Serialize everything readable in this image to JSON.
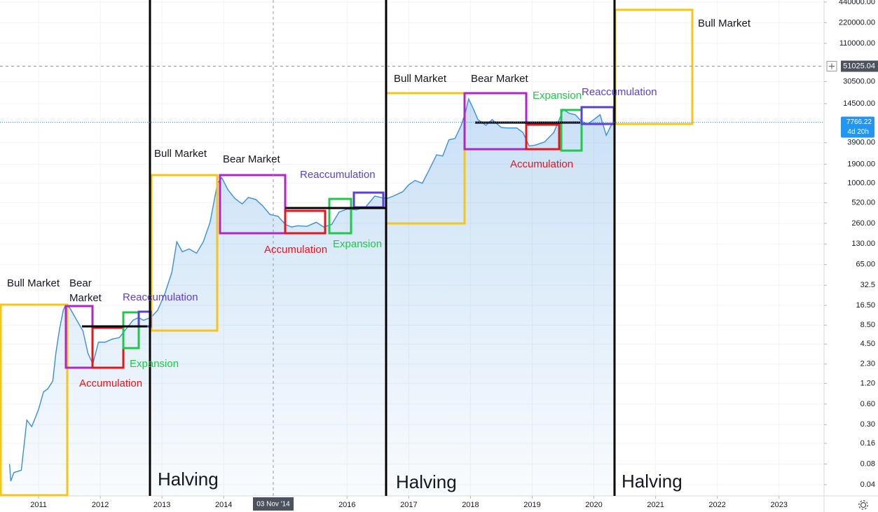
{
  "chart_data": {
    "type": "line",
    "color": "#3a8fdb",
    "log_scale": true,
    "grid": true,
    "x": [
      2010.53,
      2010.55,
      2010.6,
      2010.72,
      2010.81,
      2010.89,
      2011.0,
      2011.08,
      2011.15,
      2011.23,
      2011.28,
      2011.34,
      2011.4,
      2011.44,
      2011.51,
      2011.62,
      2011.72,
      2011.8,
      2011.88,
      2011.97,
      2012.08,
      2012.19,
      2012.31,
      2012.42,
      2012.53,
      2012.62,
      2012.7,
      2012.82,
      2012.93,
      2013.05,
      2013.16,
      2013.24,
      2013.33,
      2013.44,
      2013.56,
      2013.67,
      2013.78,
      2013.84,
      2013.9,
      2013.97,
      2014.07,
      2014.18,
      2014.3,
      2014.4,
      2014.52,
      2014.63,
      2014.75,
      2014.88,
      2015.0,
      2015.1,
      2015.2,
      2015.35,
      2015.5,
      2015.62,
      2015.75,
      2015.87,
      2016.0,
      2016.15,
      2016.3,
      2016.45,
      2016.55,
      2016.65,
      2016.75,
      2016.9,
      2017.0,
      2017.1,
      2017.22,
      2017.35,
      2017.45,
      2017.55,
      2017.65,
      2017.75,
      2017.85,
      2017.92,
      2017.97,
      2018.05,
      2018.12,
      2018.25,
      2018.35,
      2018.5,
      2018.6,
      2018.75,
      2018.85,
      2018.95,
      2019.05,
      2019.2,
      2019.35,
      2019.45,
      2019.5,
      2019.6,
      2019.7,
      2019.8,
      2019.9,
      2020.0,
      2020.1,
      2020.2,
      2020.28,
      2020.35
    ],
    "values": [
      0.08,
      0.045,
      0.06,
      0.065,
      0.35,
      0.28,
      0.5,
      0.9,
      1.0,
      1.3,
      3.3,
      7.5,
      14,
      17,
      15,
      10,
      7,
      3.3,
      2.3,
      4.8,
      4.8,
      5.3,
      5.6,
      7.5,
      10,
      11,
      10,
      11,
      14,
      25,
      50,
      140,
      100,
      110,
      95,
      140,
      270,
      520,
      1000,
      1200,
      800,
      600,
      500,
      620,
      580,
      470,
      350,
      330,
      250,
      230,
      240,
      235,
      270,
      230,
      250,
      380,
      420,
      410,
      450,
      650,
      620,
      600,
      650,
      750,
      950,
      1100,
      1000,
      1700,
      2600,
      2500,
      4300,
      4500,
      7000,
      11000,
      17000,
      12000,
      8500,
      7000,
      8500,
      6500,
      6400,
      6400,
      5500,
      3500,
      3600,
      4000,
      5500,
      9000,
      12000,
      10500,
      10000,
      8000,
      7300,
      8500,
      10000,
      5000,
      7000,
      7766.22
    ],
    "xlim": [
      2010.375,
      2023.73
    ],
    "xticks": [
      2011,
      2012,
      2013,
      2014,
      2016,
      2017,
      2018,
      2019,
      2020,
      2021,
      2022,
      2023
    ],
    "ylim": [
      0.0274,
      472000
    ],
    "yticks": [
      {
        "value": 440000,
        "label": "440000.00"
      },
      {
        "value": 220000,
        "label": "220000.00"
      },
      {
        "value": 110000,
        "label": "110000.00"
      },
      {
        "value": 30500,
        "label": "30500.00"
      },
      {
        "value": 14500,
        "label": "14500.00"
      },
      {
        "value": 3900,
        "label": "3900.00"
      },
      {
        "value": 1900,
        "label": "1900.00"
      },
      {
        "value": 1000,
        "label": "1000.00"
      },
      {
        "value": 520,
        "label": "520.00"
      },
      {
        "value": 260,
        "label": "260.00"
      },
      {
        "value": 130,
        "label": "130.00"
      },
      {
        "value": 65,
        "label": "65.00"
      },
      32.5,
      {
        "value": 16.5,
        "label": "16.50"
      },
      {
        "value": 8.5,
        "label": "8.50"
      },
      {
        "value": 4.5,
        "label": "4.50"
      },
      {
        "value": 2.3,
        "label": "2.30"
      },
      {
        "value": 1.2,
        "label": "1.20"
      },
      {
        "value": 0.6,
        "label": "0.60"
      },
      {
        "value": 0.3,
        "label": "0.30"
      },
      0.16,
      0.08,
      0.04
    ],
    "crosshair": {
      "x_label": "03 Nov '14",
      "y_value": 51025.04
    },
    "last_price": 7766.22,
    "countdown": "4d 20h",
    "annotations": [
      {
        "text": "Bull Market",
        "color": "#131722"
      },
      {
        "text": "Bear Market",
        "color": "#131722"
      },
      {
        "text": "Reaccumulation",
        "color": "#5b3fd6"
      },
      {
        "text": "Expansion",
        "color": "#1ec94a"
      },
      {
        "text": "Accumulation",
        "color": "#e8141b"
      },
      {
        "text": "Bull Market",
        "color": "#131722"
      },
      {
        "text": "Bear Market",
        "color": "#131722"
      },
      {
        "text": "Reaccumulation",
        "color": "#5b3fd6"
      },
      {
        "text": "Accumulation",
        "color": "#e8141b"
      },
      {
        "text": "Expansion",
        "color": "#1ec94a"
      },
      {
        "text": "Bull Market",
        "color": "#131722"
      },
      {
        "text": "Bear Market",
        "color": "#131722"
      },
      {
        "text": "Expansion",
        "color": "#1ec94a"
      },
      {
        "text": "Reaccumulation",
        "color": "#5b3fd6"
      },
      {
        "text": "Accumulation",
        "color": "#e8141b"
      },
      {
        "text": "Bull Market",
        "color": "#131722"
      },
      {
        "text": "Halving",
        "color": "#131722"
      },
      {
        "text": "Halving",
        "color": "#131722"
      },
      {
        "text": "Halving",
        "color": "#131722"
      }
    ]
  }
}
